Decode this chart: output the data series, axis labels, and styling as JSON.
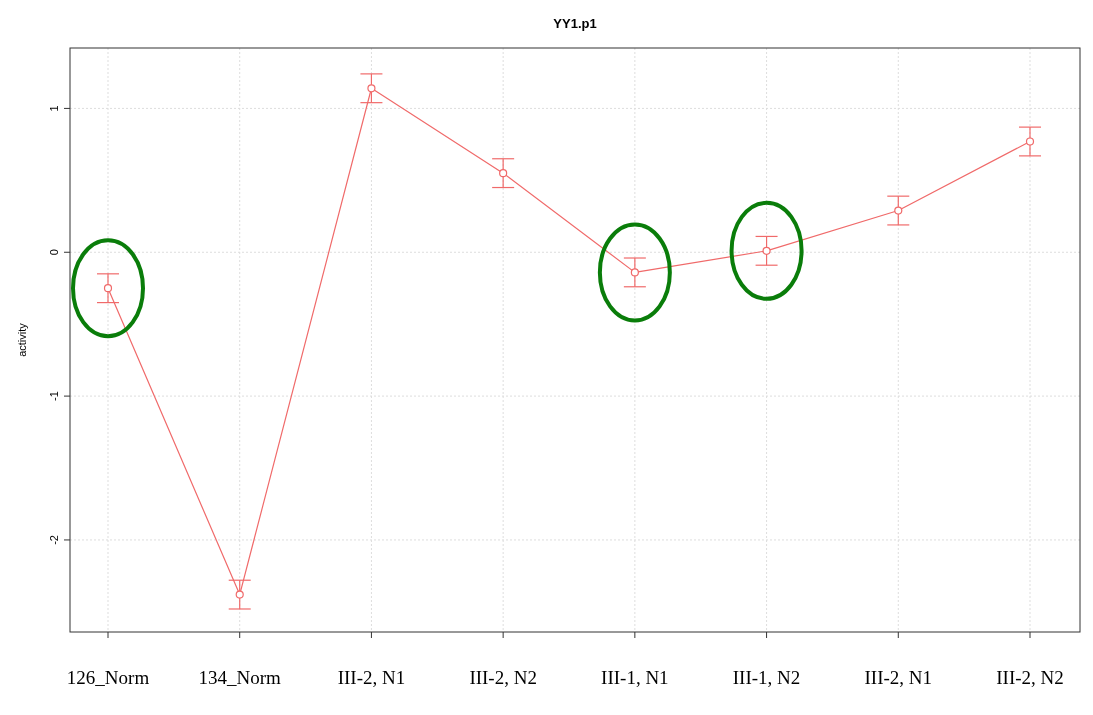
{
  "chart_data": {
    "type": "line",
    "title": "YY1.p1",
    "ylabel": "activity",
    "categories": [
      "126_Norm",
      "134_Norm",
      "III-2, N1",
      "III-2, N2",
      "III-1, N1",
      "III-1, N2",
      "III-2, N1",
      "III-2, N2"
    ],
    "series": [
      {
        "color": "#f06a6a",
        "values": [
          -0.25,
          -2.38,
          1.14,
          0.55,
          -0.14,
          0.01,
          0.29,
          0.77
        ],
        "errors": [
          0.1,
          0.1,
          0.1,
          0.1,
          0.1,
          0.1,
          0.1,
          0.1
        ]
      }
    ],
    "ylim": [
      -2.64,
      1.42
    ],
    "yticks": [
      -2,
      -1,
      0,
      1
    ],
    "grid": true,
    "marker": "circle",
    "line_style": "solid"
  }
}
